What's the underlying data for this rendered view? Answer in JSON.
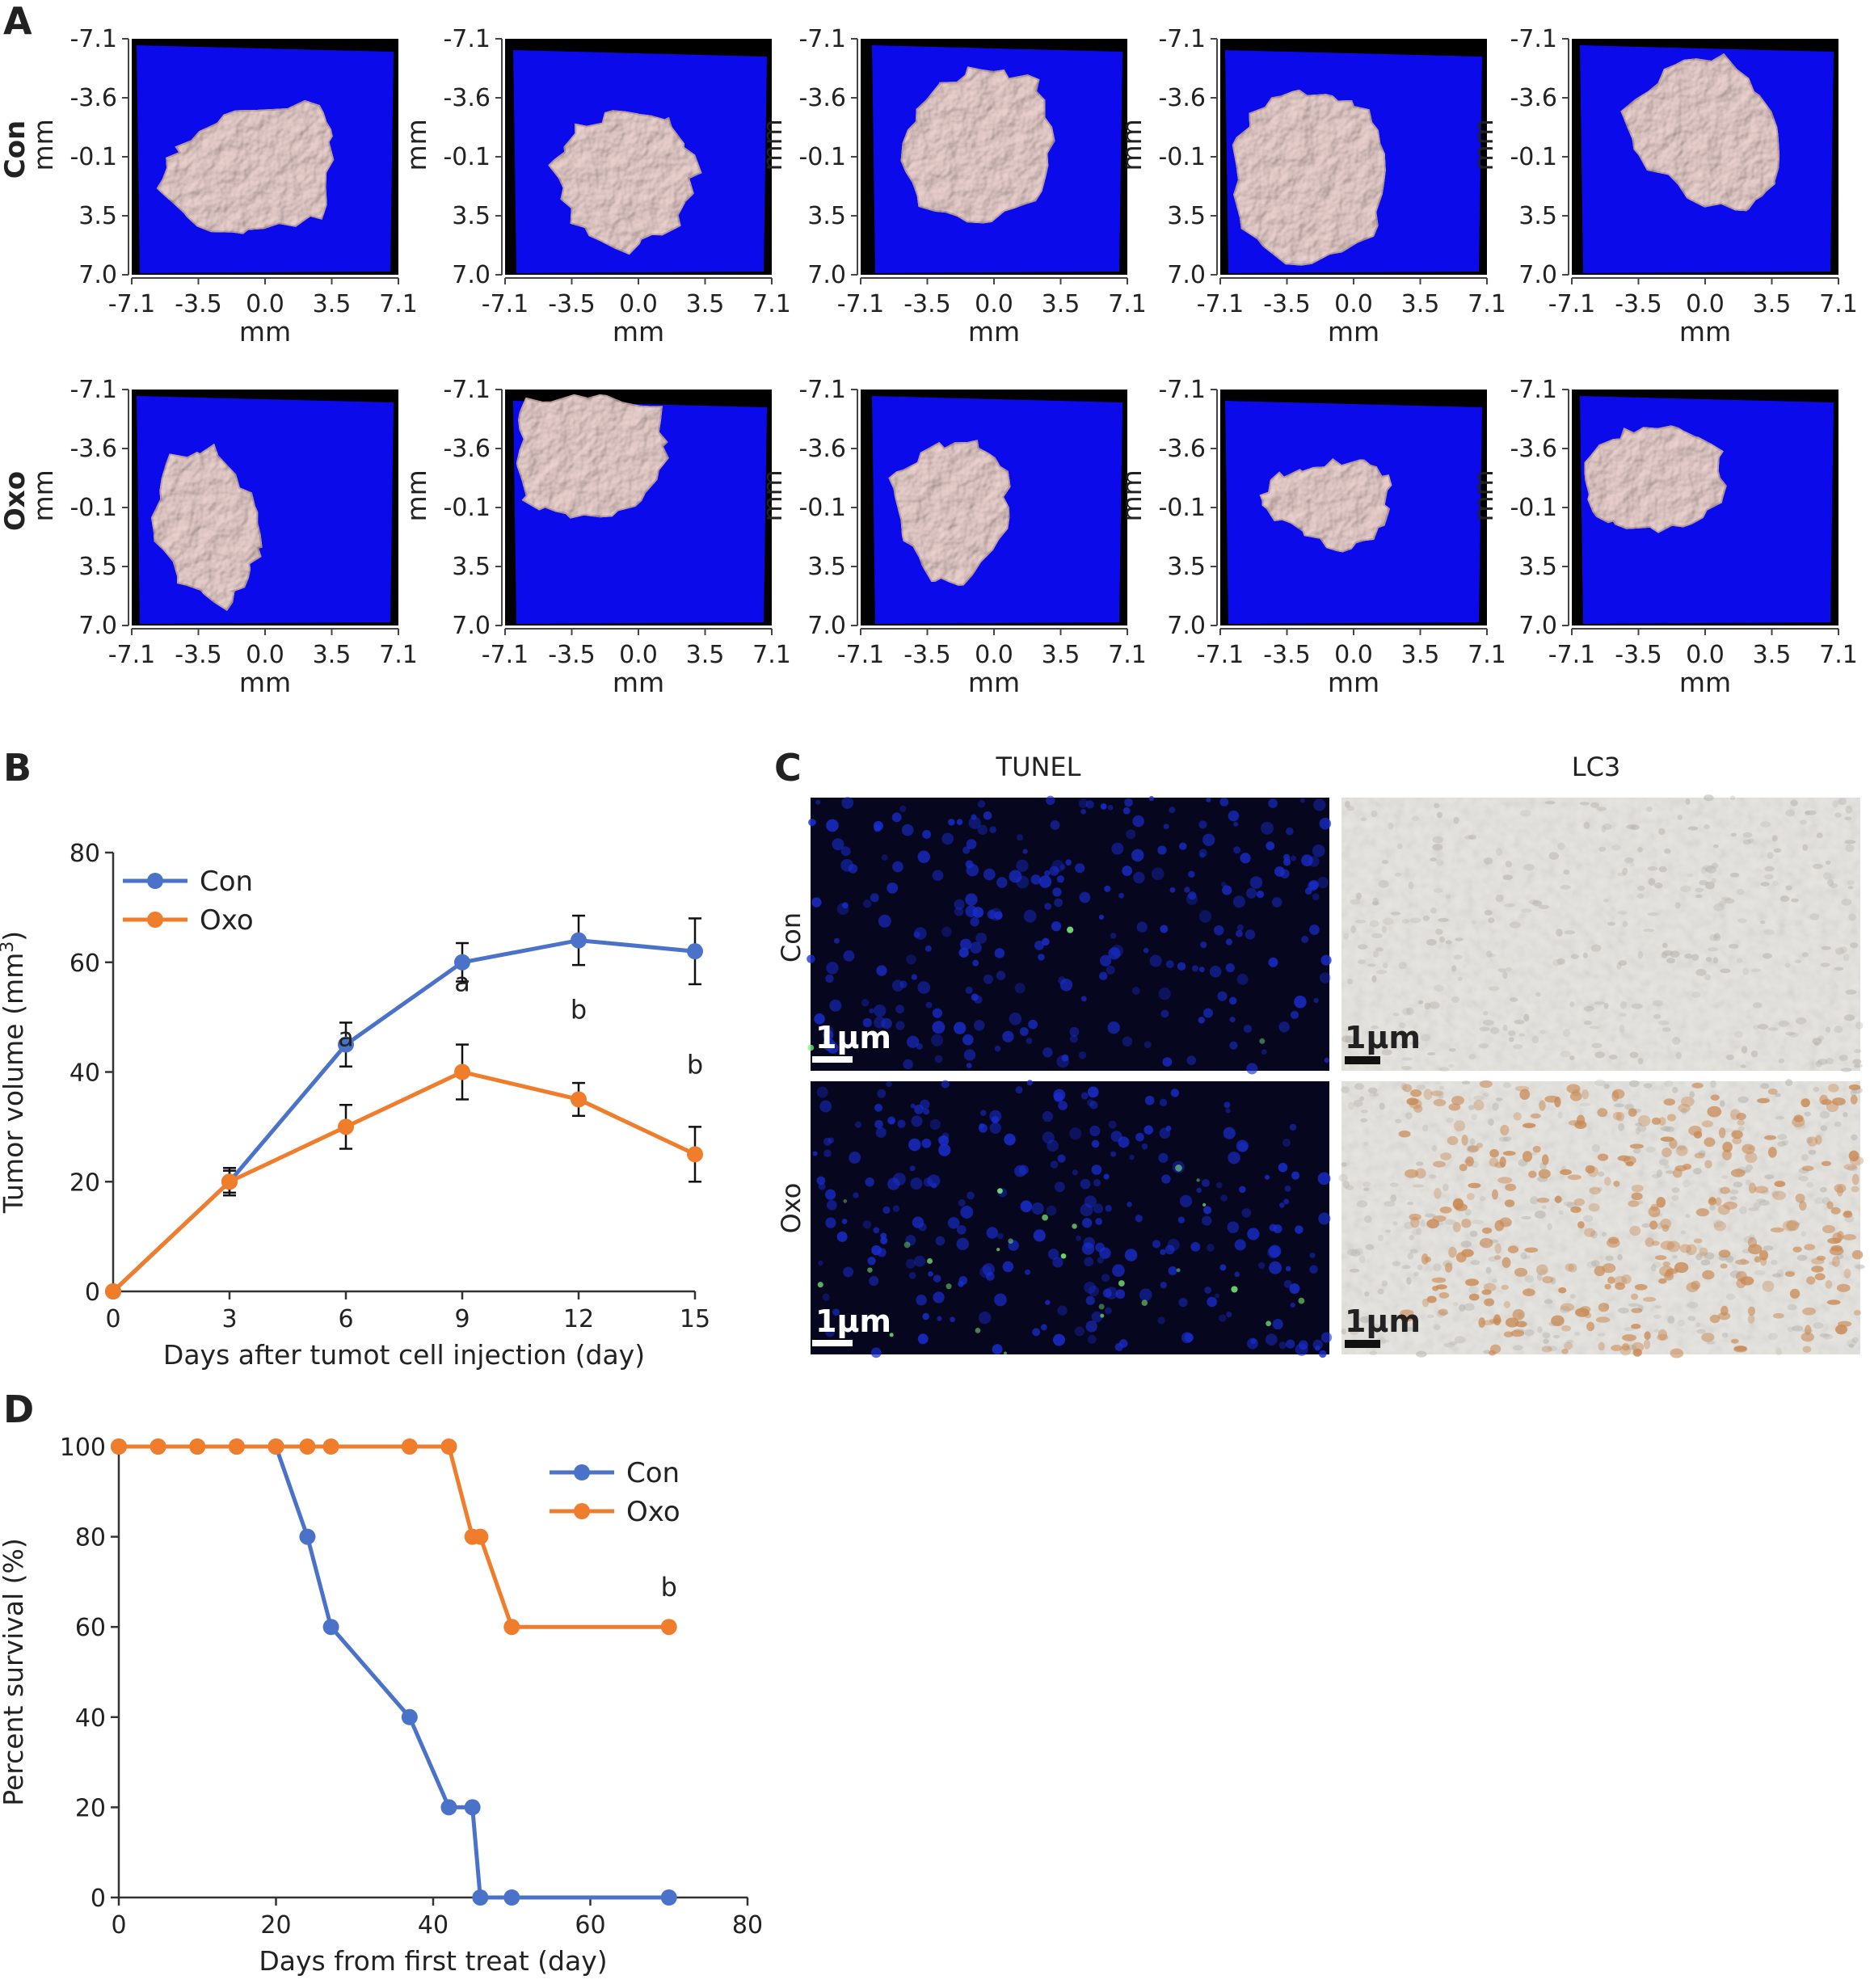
{
  "panel_labels": {
    "A": "A",
    "B": "B",
    "C": "C",
    "D": "D"
  },
  "panel_a": {
    "row_labels": [
      "Con",
      "Oxo"
    ],
    "axis_unit": "mm",
    "ticks": [
      "-7.1",
      "-3.5",
      "0.0",
      "3.5",
      "7.1"
    ],
    "y_ticks": [
      "-7.1",
      "-3.6",
      "-0.1",
      "3.5",
      "7.0"
    ],
    "colors": {
      "background": "#0a0aea",
      "tumor": "#ecd2cf",
      "frame": "#000000"
    }
  },
  "panel_c": {
    "columns": [
      "TUNEL",
      "LC3"
    ],
    "rows": [
      "Con",
      "Oxo"
    ],
    "scale_bar": "1μm",
    "colors": {
      "tunel_bg": "#06061e",
      "nuclei": "#1a2ed0",
      "apoptotic": "#7af07a",
      "lc3_bg": "#e6e4df",
      "stain": "#c98a55"
    }
  },
  "chart_data": [
    {
      "type": "line",
      "panel": "B",
      "xlabel": "Days after tumot cell injection (day)",
      "ylabel": "Tumor volume (mm",
      "ylabel_sup": "3",
      "ylabel_close": ")",
      "xlim": [
        0,
        15
      ],
      "ylim": [
        0,
        80
      ],
      "xticks": [
        0,
        3,
        6,
        9,
        12,
        15
      ],
      "yticks": [
        0,
        20,
        40,
        60,
        80
      ],
      "legend_position": "top-left",
      "series": [
        {
          "name": "Con",
          "color": "#4a72c8",
          "x": [
            0,
            3,
            6,
            9,
            12,
            15
          ],
          "y": [
            0,
            20,
            45,
            60,
            64,
            62
          ],
          "err": [
            0,
            2,
            4,
            3.5,
            4.5,
            6
          ]
        },
        {
          "name": "Oxo",
          "color": "#ef7d2b",
          "x": [
            0,
            3,
            6,
            9,
            12,
            15
          ],
          "y": [
            0,
            20,
            30,
            40,
            35,
            25
          ],
          "err": [
            0,
            2.5,
            4,
            5,
            3,
            5
          ]
        }
      ],
      "annotations": [
        {
          "x": 6,
          "y": 30,
          "text": "a"
        },
        {
          "x": 9,
          "y": 40,
          "text": "a"
        },
        {
          "x": 12,
          "y": 35,
          "text": "b"
        },
        {
          "x": 15,
          "y": 25,
          "text": "b"
        }
      ]
    },
    {
      "type": "line",
      "panel": "D",
      "xlabel": "Days from first treat (day)",
      "ylabel": "Percent survival (%)",
      "xlim": [
        0,
        80
      ],
      "ylim": [
        0,
        100
      ],
      "xticks": [
        0,
        20,
        40,
        60,
        80
      ],
      "yticks": [
        0,
        20,
        40,
        60,
        80,
        100
      ],
      "legend_position": "top-right",
      "series": [
        {
          "name": "Con",
          "color": "#4a72c8",
          "x": [
            0,
            5,
            10,
            15,
            20,
            24,
            27,
            37,
            42,
            45,
            46,
            50,
            70
          ],
          "y": [
            100,
            100,
            100,
            100,
            100,
            80,
            60,
            40,
            20,
            20,
            0,
            0,
            0
          ]
        },
        {
          "name": "Oxo",
          "color": "#ef7d2b",
          "x": [
            0,
            5,
            10,
            15,
            20,
            24,
            27,
            37,
            42,
            45,
            46,
            50,
            70
          ],
          "y": [
            100,
            100,
            100,
            100,
            100,
            100,
            100,
            100,
            100,
            80,
            80,
            60,
            60
          ]
        }
      ],
      "annotations": [
        {
          "x": 70,
          "y": 60,
          "text": "b"
        }
      ]
    }
  ]
}
